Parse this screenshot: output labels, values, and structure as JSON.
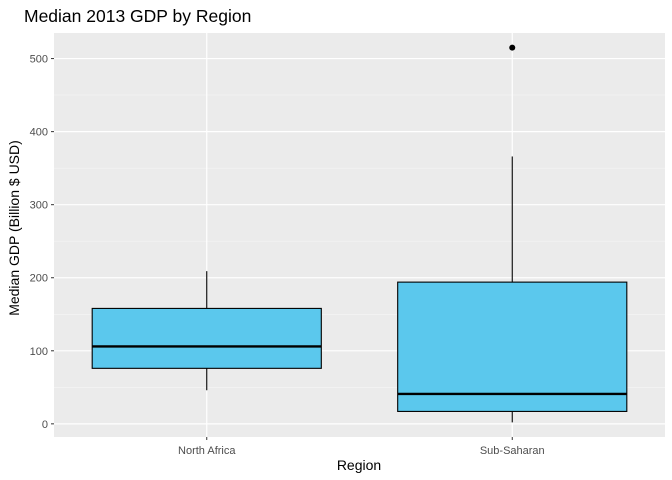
{
  "chart_data": {
    "type": "boxplot",
    "title": "Median 2013 GDP by Region",
    "xlabel": "Region",
    "ylabel": "Median GDP (Billion $ USD)",
    "ylim": [
      -18,
      535
    ],
    "yticks": [
      0,
      100,
      200,
      300,
      400,
      500
    ],
    "categories": [
      "North Africa",
      "Sub-Saharan"
    ],
    "boxes": [
      {
        "category": "North Africa",
        "whisker_low": 46,
        "q1": 76,
        "median": 106,
        "q3": 158,
        "whisker_high": 209,
        "outliers": []
      },
      {
        "category": "Sub-Saharan",
        "whisker_low": 2,
        "q1": 17,
        "median": 41,
        "q3": 194,
        "whisker_high": 366,
        "outliers": [
          515
        ]
      }
    ],
    "fill_color": "#5bc8ed",
    "panel_background": "#ebebeb",
    "grid": true,
    "legend": "none"
  }
}
